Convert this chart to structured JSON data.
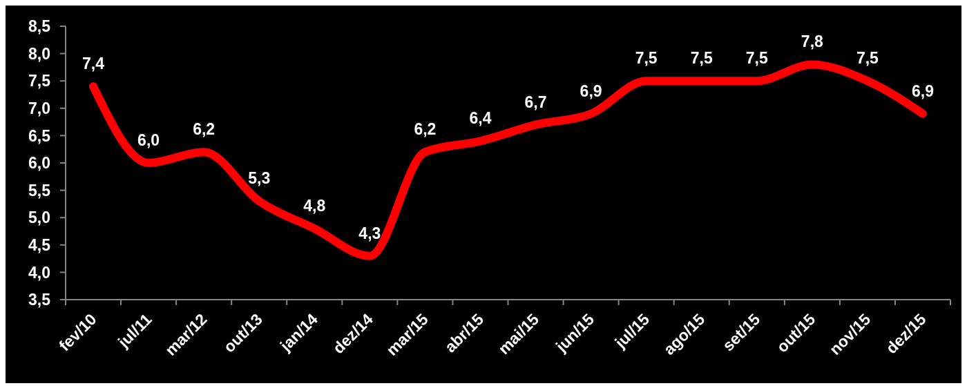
{
  "chart_data": {
    "type": "line",
    "categories": [
      "fev/10",
      "jul/11",
      "mar/12",
      "out/13",
      "jan/14",
      "dez/14",
      "mar/15",
      "abr/15",
      "mai/15",
      "jun/15",
      "jul/15",
      "ago/15",
      "set/15",
      "out/15",
      "nov/15",
      "dez/15"
    ],
    "series": [
      {
        "color": "#ff0000",
        "values": [
          7.4,
          6.0,
          6.2,
          5.3,
          4.8,
          4.3,
          6.2,
          6.4,
          6.7,
          6.9,
          7.5,
          7.5,
          7.5,
          7.8,
          7.5,
          6.9
        ],
        "value_labels": [
          "7,4",
          "6,0",
          "6,2",
          "5,3",
          "4,8",
          "4,3",
          "6,2",
          "6,4",
          "6,7",
          "6,9",
          "7,5",
          "7,5",
          "7,5",
          "7,8",
          "7,5",
          "6,9"
        ]
      }
    ],
    "ylim": [
      3.5,
      8.5
    ],
    "yticks": [
      {
        "value": 3.5,
        "label": "3,5"
      },
      {
        "value": 4.0,
        "label": "4,0"
      },
      {
        "value": 4.5,
        "label": "4,5"
      },
      {
        "value": 5.0,
        "label": "5,0"
      },
      {
        "value": 5.5,
        "label": "5,5"
      },
      {
        "value": 6.0,
        "label": "6,0"
      },
      {
        "value": 6.5,
        "label": "6,5"
      },
      {
        "value": 7.0,
        "label": "7,0"
      },
      {
        "value": 7.5,
        "label": "7,5"
      },
      {
        "value": 8.0,
        "label": "8,0"
      },
      {
        "value": 8.5,
        "label": "8,5"
      }
    ]
  }
}
